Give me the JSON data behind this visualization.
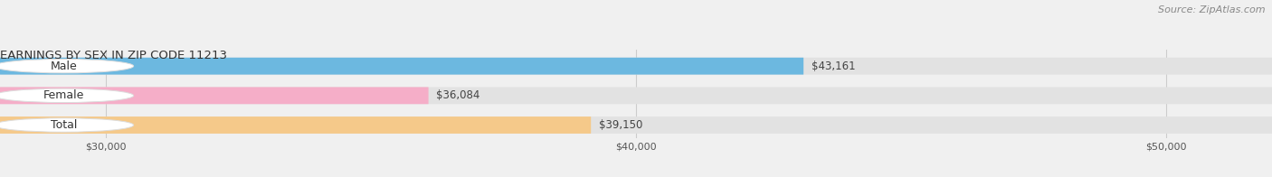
{
  "title": "EARNINGS BY SEX IN ZIP CODE 11213",
  "source_text": "Source: ZipAtlas.com",
  "categories": [
    "Male",
    "Female",
    "Total"
  ],
  "values": [
    43161,
    36084,
    39150
  ],
  "bar_colors": [
    "#6cb8e0",
    "#f5aec8",
    "#f5c98a"
  ],
  "bar_bg_color": "#e2e2e2",
  "xmin": 28000,
  "xmax": 52000,
  "xticks": [
    30000,
    40000,
    50000
  ],
  "xtick_labels": [
    "$30,000",
    "$40,000",
    "$50,000"
  ],
  "value_labels": [
    "$43,161",
    "$36,084",
    "$39,150"
  ],
  "title_fontsize": 9.5,
  "source_fontsize": 8,
  "tick_fontsize": 8,
  "bar_label_fontsize": 8.5,
  "category_fontsize": 9,
  "background_color": "#f0f0f0",
  "fig_width": 14.06,
  "fig_height": 1.96,
  "dpi": 100
}
